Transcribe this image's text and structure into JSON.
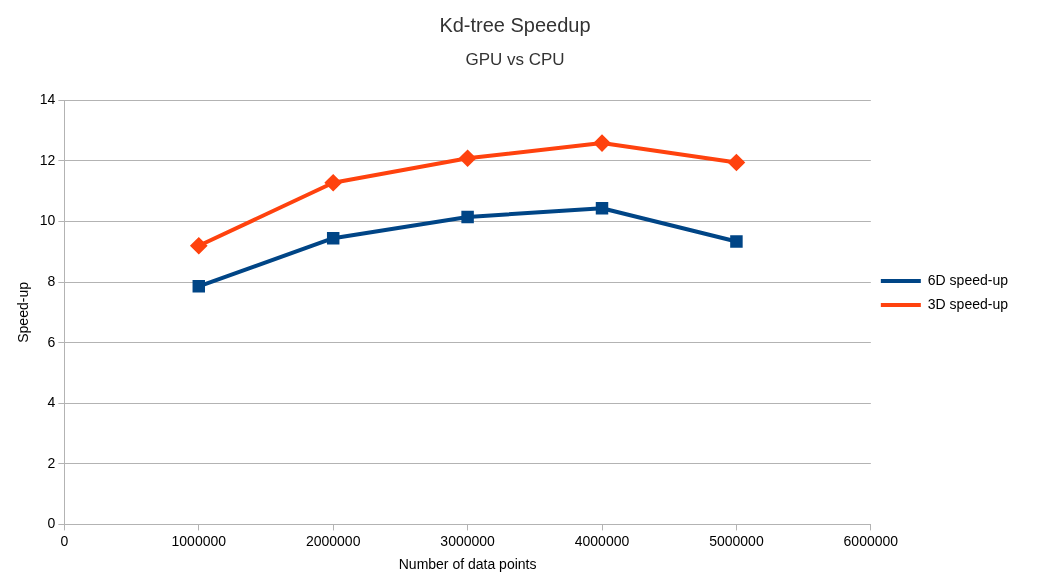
{
  "chart_data": {
    "type": "line",
    "title": "Kd-tree Speedup",
    "subtitle": "GPU vs CPU",
    "xlabel": "Number of data points",
    "ylabel": "Speed-up",
    "x": [
      1000000,
      2000000,
      3000000,
      4000000,
      5000000
    ],
    "series": [
      {
        "name": "6D speed-up",
        "color": "#004586",
        "marker": "square",
        "values": [
          7.86,
          9.45,
          10.15,
          10.44,
          9.34
        ]
      },
      {
        "name": "3D speed-up",
        "color": "#ff420e",
        "marker": "diamond",
        "values": [
          9.2,
          11.28,
          12.09,
          12.59,
          11.95
        ]
      }
    ],
    "xlim": [
      0,
      6000000
    ],
    "xticks": [
      0,
      1000000,
      2000000,
      3000000,
      4000000,
      5000000,
      6000000
    ],
    "ylim": [
      0,
      14
    ],
    "yticks": [
      0,
      2,
      4,
      6,
      8,
      10,
      12,
      14
    ],
    "grid": "y",
    "legend": "right",
    "line_style": "solid"
  }
}
